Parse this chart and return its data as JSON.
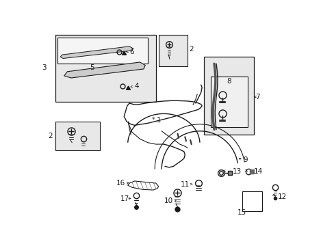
{
  "bg_color": "#ffffff",
  "line_color": "#1a1a1a",
  "gray_fill": "#e8e8e8",
  "fig_width": 4.89,
  "fig_height": 3.6,
  "dpi": 100,
  "font_size": 7.5,
  "arrow_lw": 0.5
}
